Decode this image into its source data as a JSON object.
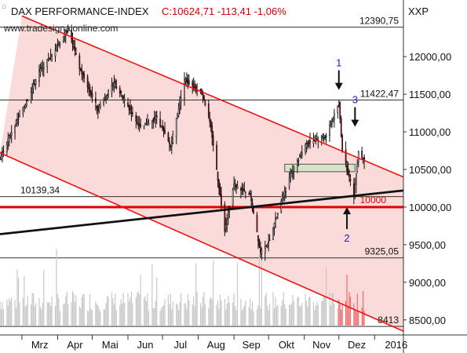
{
  "header": {
    "title": "DAX PERFORMANCE-INDEX",
    "quote": "C:10624,71 -113,41 -1,06%",
    "ticker": "XXP",
    "watermark": "www.tradesignalonline.com"
  },
  "colors": {
    "quote": "#d40000",
    "channel": "#ee1111",
    "channel_fill": "#fbdada",
    "trendline": "#111111",
    "support": "#e00000",
    "label_blue": "#1c1ccc",
    "zone_fill": "#d8e2c8",
    "candle_up": "#ffffff",
    "candle_down": "#c40018",
    "volume": "#c8c8c8",
    "volume_highlight": "#f06a6a"
  },
  "chart_data": {
    "type": "candlestick",
    "title": "DAX PERFORMANCE-INDEX",
    "last_quote": {
      "close": "10624,71",
      "change": "-113,41",
      "change_pct": "-1,06%"
    },
    "x_range": [
      "2015-02-10",
      "2016-01-26"
    ],
    "y_range": [
      8300,
      12700
    ],
    "y_ticks": [
      {
        "value": 8500,
        "label": "8500,00"
      },
      {
        "value": 9000,
        "label": "9000,00"
      },
      {
        "value": 9500,
        "label": "9500,00"
      },
      {
        "value": 10000,
        "label": "10000,00"
      },
      {
        "value": 10500,
        "label": "10500,00"
      },
      {
        "value": 11000,
        "label": "11000,00"
      },
      {
        "value": 11500,
        "label": "11500,00"
      },
      {
        "value": 12000,
        "label": "12000,00"
      }
    ],
    "x_ticks": [
      {
        "date": "2015-03-01",
        "label": "Mrz"
      },
      {
        "date": "2015-04-01",
        "label": "Apr"
      },
      {
        "date": "2015-05-01",
        "label": "Mai"
      },
      {
        "date": "2015-06-01",
        "label": "Jun"
      },
      {
        "date": "2015-07-01",
        "label": "Jul"
      },
      {
        "date": "2015-08-01",
        "label": "Aug"
      },
      {
        "date": "2015-09-01",
        "label": "Sep"
      },
      {
        "date": "2015-10-01",
        "label": "Okt"
      },
      {
        "date": "2015-11-01",
        "label": "Nov"
      },
      {
        "date": "2015-12-01",
        "label": "Dez"
      },
      {
        "date": "2016-01-01",
        "label": "2016"
      }
    ],
    "horizontal_levels": [
      {
        "value": 12390.75,
        "label": "12390,75",
        "label_side": "right"
      },
      {
        "value": 11422.47,
        "label": "11422,47",
        "label_side": "right"
      },
      {
        "value": 10139.34,
        "label": "10139,34",
        "label_side": "left"
      },
      {
        "value": 9325.05,
        "label": "9325,05",
        "label_side": "right"
      },
      {
        "value": 8413,
        "label": "8413",
        "label_side": "right"
      }
    ],
    "support_line": {
      "value": 10000,
      "label": "10000"
    },
    "downtrend_channel": {
      "upper": [
        {
          "date": "2015-03-01",
          "value": 12540
        },
        {
          "date": "2016-01-26",
          "value": 10400
        }
      ],
      "lower": [
        {
          "date": "2015-02-10",
          "value": 10720
        },
        {
          "date": "2016-01-26",
          "value": 8350
        }
      ]
    },
    "uptrend_line": [
      {
        "date": "2015-02-10",
        "value": 9640
      },
      {
        "date": "2016-01-26",
        "value": 10220
      }
    ],
    "resistance_zone": {
      "from": "2015-10-15",
      "to": "2015-12-15",
      "low": 10470,
      "high": 10570
    },
    "annotations": [
      {
        "label": "1",
        "date": "2015-12-01",
        "value": 11870,
        "arrow": "down"
      },
      {
        "label": "3",
        "date": "2015-12-15",
        "value": 11380,
        "arrow": "down"
      },
      {
        "label": "2",
        "date": "2015-12-08",
        "value": 9540,
        "arrow": "up"
      }
    ],
    "path_keypoints": [
      [
        "2015-02-10",
        10650
      ],
      [
        "2015-02-20",
        11000
      ],
      [
        "2015-03-05",
        11400
      ],
      [
        "2015-03-16",
        11800
      ],
      [
        "2015-03-26",
        12000
      ],
      [
        "2015-04-10",
        12374
      ],
      [
        "2015-04-20",
        11850
      ],
      [
        "2015-05-06",
        11300
      ],
      [
        "2015-05-20",
        11650
      ],
      [
        "2015-06-12",
        11050
      ],
      [
        "2015-06-26",
        11200
      ],
      [
        "2015-07-08",
        10800
      ],
      [
        "2015-07-20",
        11700
      ],
      [
        "2015-08-05",
        11500
      ],
      [
        "2015-08-12",
        11050
      ],
      [
        "2015-08-24",
        9700
      ],
      [
        "2015-09-01",
        10300
      ],
      [
        "2015-09-15",
        10150
      ],
      [
        "2015-09-24",
        9400
      ],
      [
        "2015-10-02",
        9550
      ],
      [
        "2015-10-12",
        10100
      ],
      [
        "2015-10-22",
        10500
      ],
      [
        "2015-11-03",
        10850
      ],
      [
        "2015-11-20",
        10950
      ],
      [
        "2015-12-01",
        11380
      ],
      [
        "2015-12-04",
        10750
      ],
      [
        "2015-12-14",
        10150
      ],
      [
        "2015-12-18",
        10750
      ],
      [
        "2015-12-23",
        10620
      ]
    ]
  }
}
